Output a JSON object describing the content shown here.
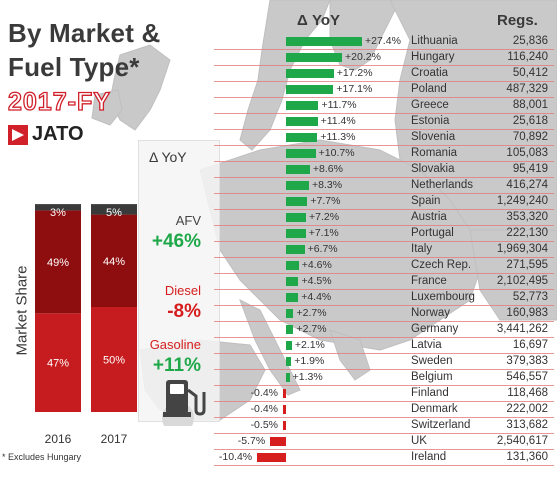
{
  "title_line1": "By Market &",
  "title_line2": "Fuel Type*",
  "year_label": "2017-FY",
  "brand": "JATO",
  "colors": {
    "positive": "#1fa84a",
    "negative": "#d61e1e",
    "bar_top": "#3a3a3a",
    "bar_mid": "#8e0e10",
    "bar_low": "#c71c1f",
    "fuel_green": "#1fa84a",
    "fuel_red": "#d61e1e"
  },
  "left_panel": {
    "yaxis_label": "Market Share",
    "header": "Δ YoY",
    "fuels": [
      {
        "name": "AFV",
        "delta": "+46%",
        "color": "#1fa84a"
      },
      {
        "name": "Diesel",
        "delta": "-8%",
        "color": "#d61e1e"
      },
      {
        "name": "Gasoline",
        "delta": "+11%",
        "color": "#1fa84a"
      }
    ],
    "footnote": "* Excludes Hungary",
    "pump_icon": "fuel-pump-icon"
  },
  "chart_data": [
    {
      "type": "bar",
      "stacked": true,
      "categories": [
        "2016",
        "2017"
      ],
      "ylabel": "Market Share",
      "series": [
        {
          "values": [
            47,
            50
          ],
          "labels": [
            "47%",
            "50%"
          ]
        },
        {
          "values": [
            49,
            44
          ],
          "labels": [
            "49%",
            "44%"
          ]
        },
        {
          "values": [
            3,
            5
          ],
          "labels": [
            "3%",
            "5%"
          ]
        }
      ],
      "ylim": [
        0,
        100
      ]
    },
    {
      "type": "bar",
      "orientation": "horizontal",
      "header_delta": "Δ YoY",
      "header_regs": "Regs.",
      "xlim": [
        -10.4,
        27.4
      ],
      "rows": [
        {
          "country": "Lithuania",
          "delta": 27.4,
          "delta_label": "+27.4%",
          "regs": "25,836"
        },
        {
          "country": "Hungary",
          "delta": 20.2,
          "delta_label": "+20.2%",
          "regs": "116,240"
        },
        {
          "country": "Croatia",
          "delta": 17.2,
          "delta_label": "+17.2%",
          "regs": "50,412"
        },
        {
          "country": "Poland",
          "delta": 17.1,
          "delta_label": "+17.1%",
          "regs": "487,329"
        },
        {
          "country": "Greece",
          "delta": 11.7,
          "delta_label": "+11.7%",
          "regs": "88,001"
        },
        {
          "country": "Estonia",
          "delta": 11.4,
          "delta_label": "+11.4%",
          "regs": "25,618"
        },
        {
          "country": "Slovenia",
          "delta": 11.3,
          "delta_label": "+11.3%",
          "regs": "70,892"
        },
        {
          "country": "Romania",
          "delta": 10.7,
          "delta_label": "+10.7%",
          "regs": "105,083"
        },
        {
          "country": "Slovakia",
          "delta": 8.6,
          "delta_label": "+8.6%",
          "regs": "95,419"
        },
        {
          "country": "Netherlands",
          "delta": 8.3,
          "delta_label": "+8.3%",
          "regs": "416,274"
        },
        {
          "country": "Spain",
          "delta": 7.7,
          "delta_label": "+7.7%",
          "regs": "1,249,240"
        },
        {
          "country": "Austria",
          "delta": 7.2,
          "delta_label": "+7.2%",
          "regs": "353,320"
        },
        {
          "country": "Portugal",
          "delta": 7.1,
          "delta_label": "+7.1%",
          "regs": "222,130"
        },
        {
          "country": "Italy",
          "delta": 6.7,
          "delta_label": "+6.7%",
          "regs": "1,969,304"
        },
        {
          "country": "Czech Rep.",
          "delta": 4.6,
          "delta_label": "+4.6%",
          "regs": "271,595"
        },
        {
          "country": "France",
          "delta": 4.5,
          "delta_label": "+4.5%",
          "regs": "2,102,495"
        },
        {
          "country": "Luxembourg",
          "delta": 4.4,
          "delta_label": "+4.4%",
          "regs": "52,773"
        },
        {
          "country": "Norway",
          "delta": 2.7,
          "delta_label": "+2.7%",
          "regs": "160,983"
        },
        {
          "country": "Germany",
          "delta": 2.7,
          "delta_label": "+2.7%",
          "regs": "3,441,262"
        },
        {
          "country": "Latvia",
          "delta": 2.1,
          "delta_label": "+2.1%",
          "regs": "16,697"
        },
        {
          "country": "Sweden",
          "delta": 1.9,
          "delta_label": "+1.9%",
          "regs": "379,383"
        },
        {
          "country": "Belgium",
          "delta": 1.3,
          "delta_label": "+1.3%",
          "regs": "546,557"
        },
        {
          "country": "Finland",
          "delta": -0.4,
          "delta_label": "-0.4%",
          "regs": "118,468"
        },
        {
          "country": "Denmark",
          "delta": -0.4,
          "delta_label": "-0.4%",
          "regs": "222,002"
        },
        {
          "country": "Switzerland",
          "delta": -0.5,
          "delta_label": "-0.5%",
          "regs": "313,682"
        },
        {
          "country": "UK",
          "delta": -5.7,
          "delta_label": "-5.7%",
          "regs": "2,540,617"
        },
        {
          "country": "Ireland",
          "delta": -10.4,
          "delta_label": "-10.4%",
          "regs": "131,360"
        }
      ]
    }
  ]
}
